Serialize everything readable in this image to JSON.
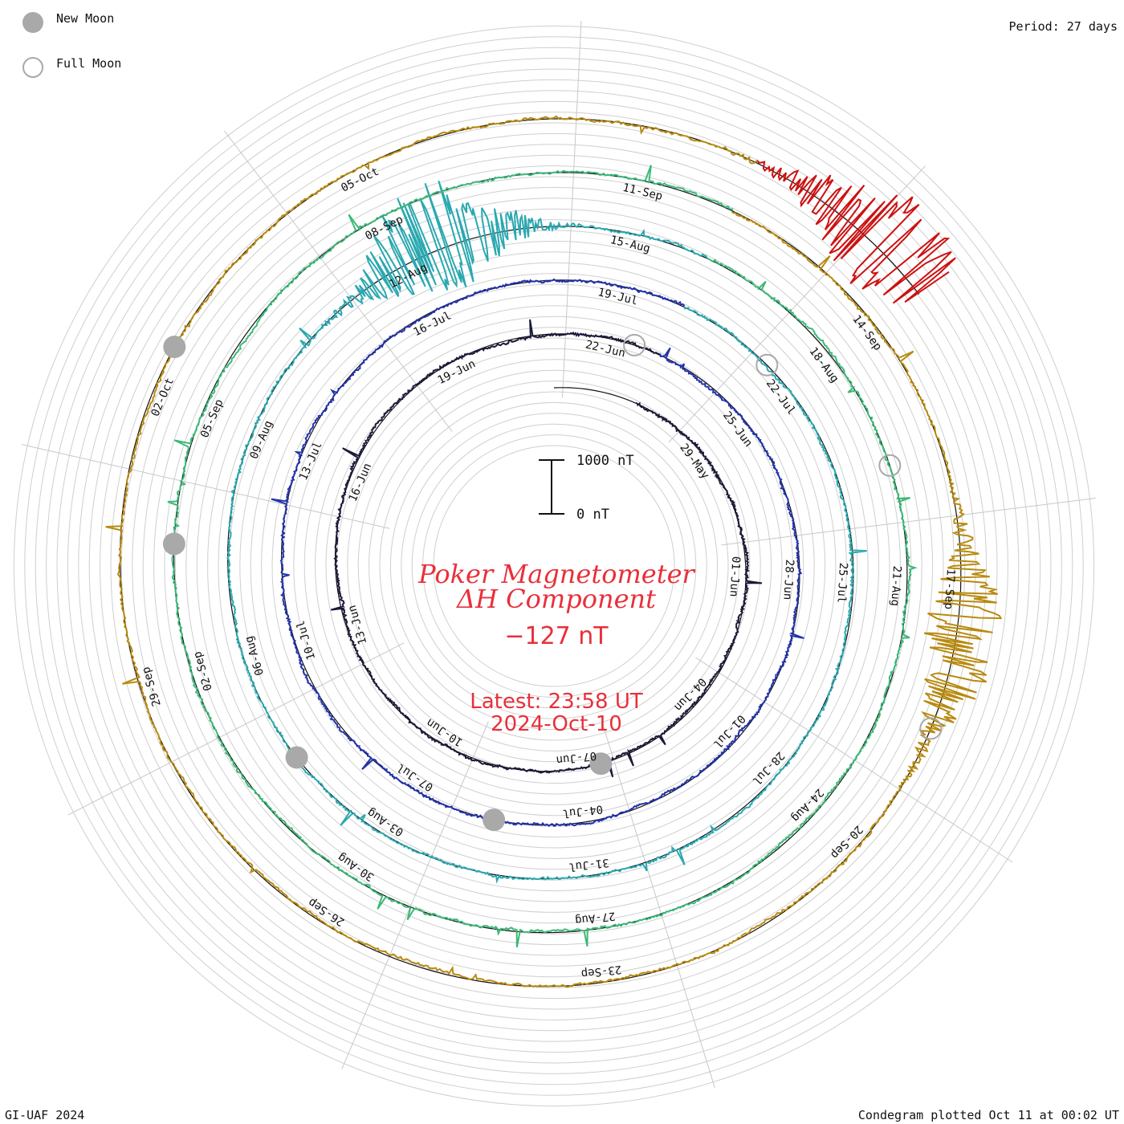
{
  "legend": {
    "new_moon_label": "New Moon",
    "full_moon_label": "Full Moon",
    "moon_color": "#a9a9a9"
  },
  "period_label": "Period: 27 days",
  "title": {
    "line1": "Poker Magnetometer",
    "line2": "ΔH Component",
    "current_value": "−127 nT",
    "latest_time": "Latest: 23:58 UT",
    "latest_date": "2024-Oct-10",
    "color": "#e8303a"
  },
  "scale_bar": {
    "top_label": "1000 nT",
    "bottom_label": "0 nT"
  },
  "footer": {
    "left": "GI-UAF 2024",
    "right": "Condegram plotted Oct 11 at 00:02 UT"
  },
  "chart_data": {
    "type": "line",
    "chart_kind": "condegram (spiral, 27-day period)",
    "period_days": 27,
    "units": "nT",
    "scale_bar_nT": [
      0,
      1000
    ],
    "current_value_nT": -127,
    "rings": [
      {
        "start": "2024-05-27",
        "color": "#1a1a3a",
        "date_labels": [
          "29-May",
          "01-Jun",
          "04-Jun",
          "07-Jun",
          "10-Jun",
          "13-Jun",
          "16-Jun",
          "19-Jun",
          "22-Jun"
        ]
      },
      {
        "start": "2024-06-23",
        "color": "#2233aa",
        "date_labels": [
          "25-Jun",
          "28-Jun",
          "01-Jul",
          "04-Jul",
          "07-Jul",
          "10-Jul",
          "13-Jul",
          "16-Jul",
          "19-Jul"
        ]
      },
      {
        "start": "2024-07-20",
        "color": "#2aa8b0",
        "date_labels": [
          "22-Jul",
          "25-Jul",
          "28-Jul",
          "31-Jul",
          "03-Aug",
          "06-Aug",
          "09-Aug",
          "12-Aug",
          "15-Aug"
        ]
      },
      {
        "start": "2024-08-16",
        "color": "#3cb878",
        "date_labels": [
          "18-Aug",
          "21-Aug",
          "24-Aug",
          "27-Aug",
          "30-Aug",
          "02-Sep",
          "05-Sep",
          "08-Sep",
          "11-Sep"
        ]
      },
      {
        "start": "2024-09-12",
        "color": "#b88a10",
        "date_labels": [
          "14-Sep",
          "17-Sep",
          "20-Sep",
          "23-Sep",
          "26-Sep",
          "29-Sep",
          "02-Oct",
          "05-Oct"
        ]
      },
      {
        "start": "2024-10-09",
        "color": "#cc1111",
        "date_labels": []
      }
    ],
    "new_moons": [
      "2024-06-06",
      "2024-07-05",
      "2024-08-04",
      "2024-09-03",
      "2024-10-02"
    ],
    "full_moons": [
      "2024-06-22",
      "2024-07-21",
      "2024-08-19",
      "2024-09-18"
    ],
    "disturbances": [
      {
        "date": "2024-08-12",
        "approx_peak_nT": 900
      },
      {
        "date": "2024-09-17",
        "approx_peak_nT": 600
      },
      {
        "date": "2024-10-10",
        "approx_peak_nT": 800
      }
    ]
  }
}
